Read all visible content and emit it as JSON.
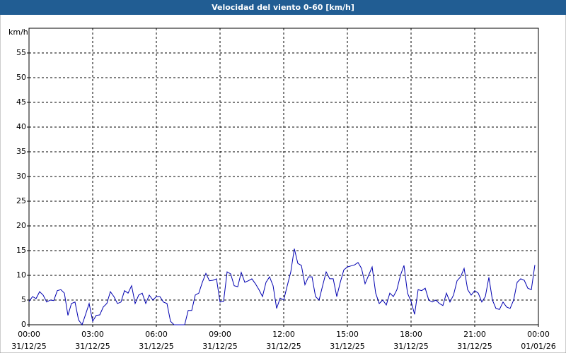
{
  "chart_data": {
    "type": "line",
    "title": "Velocidad del viento 0-60 [km/h]",
    "y_label": "km/h",
    "xlim": [
      0,
      1440
    ],
    "ylim": [
      0,
      60
    ],
    "yticks": [
      0,
      5,
      10,
      15,
      20,
      25,
      30,
      35,
      40,
      45,
      50,
      55
    ],
    "xticks": [
      {
        "value": 0,
        "label": "00:00",
        "date": "31/12/25"
      },
      {
        "value": 180,
        "label": "03:00",
        "date": "31/12/25"
      },
      {
        "value": 360,
        "label": "06:00",
        "date": "31/12/25"
      },
      {
        "value": 540,
        "label": "09:00",
        "date": "31/12/25"
      },
      {
        "value": 720,
        "label": "12:00",
        "date": "31/12/25"
      },
      {
        "value": 900,
        "label": "15:00",
        "date": "31/12/25"
      },
      {
        "value": 1080,
        "label": "18:00",
        "date": "31/12/25"
      },
      {
        "value": 1260,
        "label": "21:00",
        "date": "31/12/25"
      },
      {
        "value": 1440,
        "label": "00:00",
        "date": "01/01/26"
      }
    ],
    "grid": true,
    "series": [
      {
        "color": "#0000b0",
        "x": [
          0,
          10,
          20,
          30,
          40,
          50,
          60,
          70,
          80,
          90,
          100,
          110,
          120,
          130,
          140,
          150,
          160,
          170,
          180,
          190,
          200,
          210,
          220,
          230,
          240,
          250,
          260,
          270,
          280,
          290,
          300,
          310,
          320,
          330,
          340,
          350,
          360,
          370,
          380,
          390,
          400,
          410,
          420,
          430,
          440,
          450,
          460,
          470,
          480,
          490,
          500,
          510,
          520,
          530,
          540,
          550,
          560,
          570,
          580,
          590,
          600,
          610,
          620,
          630,
          640,
          650,
          660,
          670,
          680,
          690,
          700,
          710,
          720,
          730,
          740,
          750,
          760,
          770,
          780,
          790,
          800,
          810,
          820,
          830,
          840,
          850,
          860,
          870,
          880,
          890,
          900,
          910,
          920,
          930,
          940,
          950,
          960,
          970,
          980,
          990,
          1000,
          1010,
          1020,
          1030,
          1040,
          1050,
          1060,
          1070,
          1080,
          1090,
          1100,
          1110,
          1120,
          1130,
          1140,
          1150,
          1160,
          1170,
          1180,
          1190,
          1200,
          1210,
          1220,
          1230,
          1240,
          1250,
          1260,
          1270,
          1280,
          1290,
          1300,
          1310,
          1320,
          1330,
          1340,
          1350,
          1360,
          1370,
          1380,
          1390,
          1400,
          1410,
          1420,
          1430
        ],
        "values": [
          4.7,
          5.7,
          5.3,
          6.7,
          6.0,
          4.6,
          5.0,
          4.9,
          6.9,
          7.1,
          6.4,
          1.9,
          4.3,
          4.6,
          1.0,
          0,
          2.1,
          4.3,
          0.7,
          1.9,
          2.0,
          3.6,
          4.3,
          6.7,
          5.7,
          4.3,
          4.6,
          6.9,
          6.4,
          7.9,
          4.3,
          6.0,
          6.4,
          4.3,
          6.0,
          5.0,
          5.7,
          5.7,
          4.6,
          4.3,
          0.7,
          0,
          0,
          0,
          0,
          2.9,
          2.9,
          6.0,
          6.4,
          8.6,
          10.4,
          8.9,
          9.0,
          9.3,
          4.6,
          4.7,
          10.7,
          10.3,
          7.9,
          7.7,
          10.6,
          8.6,
          8.9,
          9.3,
          8.3,
          7.1,
          5.7,
          8.6,
          9.7,
          7.9,
          3.3,
          5.4,
          5.0,
          7.9,
          10.7,
          15.4,
          12.4,
          12.0,
          8.1,
          9.7,
          9.7,
          5.7,
          5.0,
          7.9,
          10.7,
          9.3,
          9.3,
          5.7,
          8.6,
          11.1,
          11.7,
          11.9,
          12.1,
          12.6,
          11.4,
          8.3,
          10.0,
          11.7,
          6.4,
          4.3,
          5.0,
          4.0,
          6.4,
          5.7,
          7.1,
          10.0,
          12.0,
          6.4,
          4.7,
          2.1,
          7.1,
          6.9,
          7.4,
          5.0,
          4.6,
          5.0,
          4.3,
          3.9,
          6.4,
          4.6,
          6.0,
          8.9,
          9.7,
          11.4,
          7.1,
          6.0,
          6.9,
          6.4,
          4.6,
          5.7,
          9.6,
          5.0,
          3.3,
          3.1,
          4.6,
          3.6,
          3.3,
          5.0,
          8.6,
          9.3,
          9.0,
          7.4,
          7.1,
          12.1
        ]
      }
    ]
  }
}
